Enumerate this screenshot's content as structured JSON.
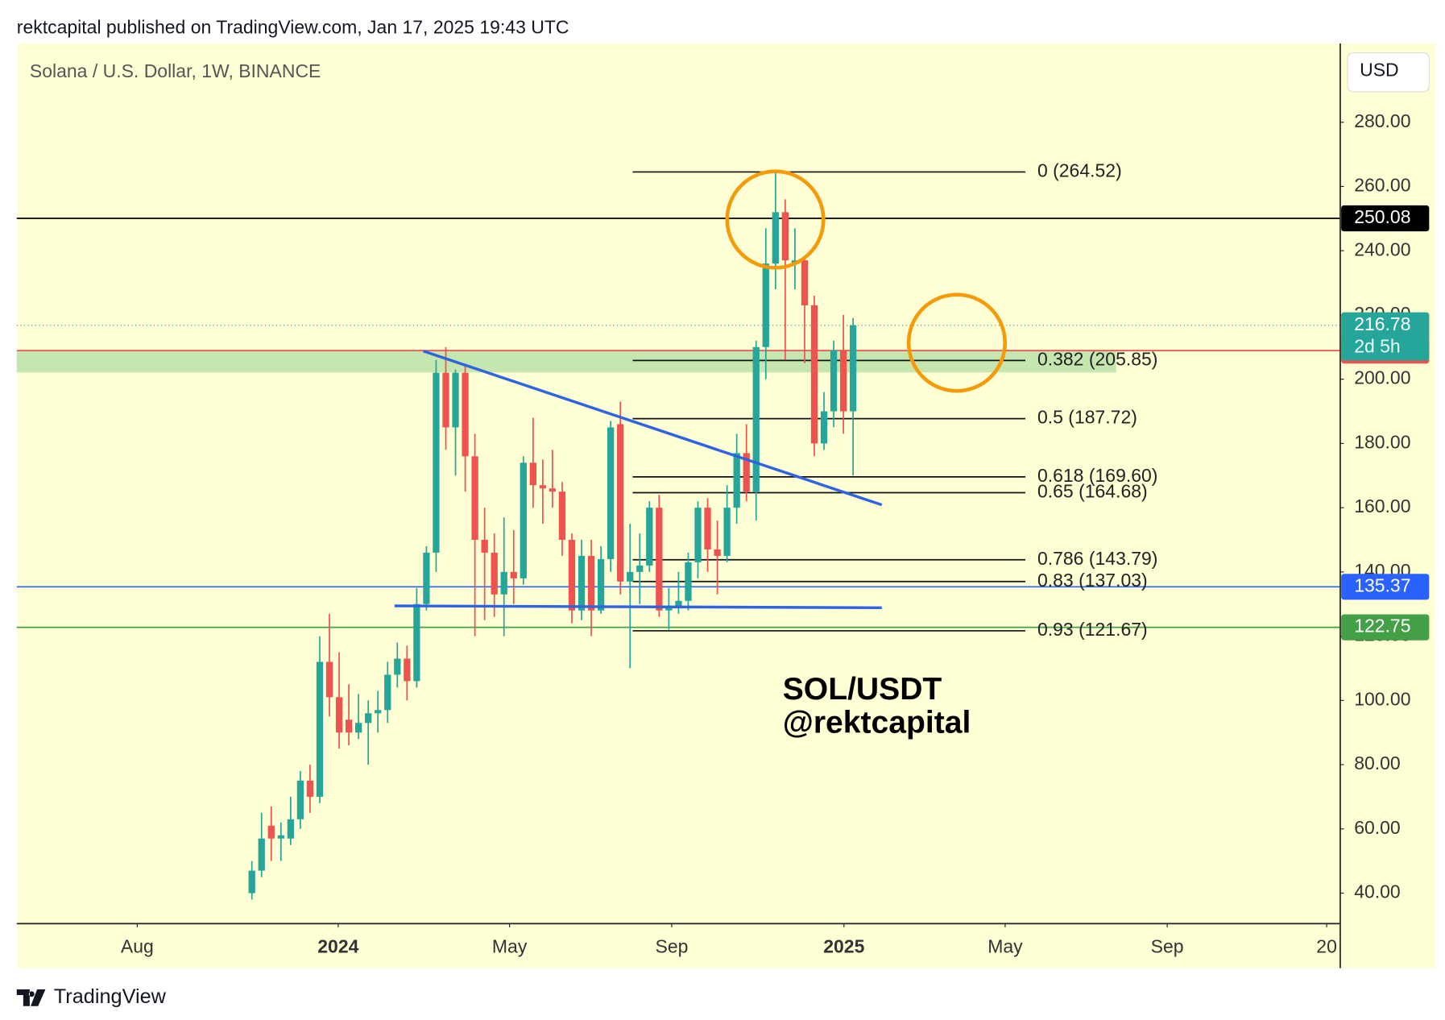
{
  "header": "rektcapital published on TradingView.com, Jan 17, 2025 19:43 UTC",
  "footer": "TradingView",
  "chart_data": {
    "type": "candlestick",
    "title": "Solana / U.S. Dollar, 1W, BINANCE",
    "currency": "USD",
    "annotations": [
      "SOL/USDT",
      "@rektcapital"
    ],
    "up_color": "#26a69a",
    "down_color": "#ef5350",
    "open": [
      40,
      47,
      61,
      57,
      57,
      63,
      75,
      70,
      112,
      101,
      94,
      90,
      93,
      96,
      97,
      108,
      113,
      106,
      130,
      146,
      202,
      185,
      202,
      176,
      150,
      146,
      133,
      140,
      138,
      174,
      167,
      166,
      165,
      150,
      128,
      145,
      128,
      144,
      186,
      137,
      140,
      142,
      160,
      128,
      129,
      131,
      143,
      160,
      147,
      145,
      160,
      177,
      165,
      210,
      236,
      252,
      236,
      237,
      223,
      180,
      190,
      209,
      190
    ],
    "high": [
      50,
      65,
      67,
      62,
      70,
      78,
      80,
      120,
      127,
      115,
      105,
      102,
      100,
      103,
      112,
      118,
      117,
      135,
      148,
      206,
      210,
      203,
      204,
      183,
      160,
      152,
      157,
      153,
      176,
      188,
      175,
      178,
      168,
      152,
      150,
      150,
      148,
      187,
      193,
      155,
      152,
      162,
      164,
      135,
      140,
      146,
      162,
      163,
      156,
      167,
      183,
      186,
      212,
      247,
      264.52,
      256,
      247,
      238,
      226,
      196,
      212,
      220,
      219
    ],
    "low": [
      38,
      45,
      50,
      50,
      55,
      60,
      65,
      68,
      95,
      85,
      86,
      88,
      80,
      90,
      93,
      104,
      100,
      104,
      128,
      140,
      178,
      170,
      165,
      120,
      125,
      126,
      120,
      130,
      136,
      160,
      155,
      160,
      145,
      124,
      125,
      120,
      127,
      140,
      133,
      110,
      130,
      140,
      126,
      122,
      127,
      128,
      138,
      140,
      133,
      143,
      155,
      162,
      156,
      200,
      228,
      206,
      228,
      205,
      176,
      178,
      185,
      183,
      170
    ],
    "close": [
      47,
      57,
      57,
      58,
      63,
      75,
      70,
      112,
      101,
      90,
      90,
      93,
      96,
      97,
      108,
      113,
      106,
      130,
      146,
      202,
      185,
      202,
      176,
      150,
      146,
      133,
      140,
      138,
      174,
      167,
      166,
      165,
      150,
      128,
      145,
      128,
      144,
      185,
      137,
      140,
      142,
      160,
      128,
      129,
      131,
      143,
      160,
      147,
      145,
      160,
      177,
      165,
      210,
      236,
      252,
      237,
      237,
      223,
      180,
      190,
      209,
      190,
      216.78
    ],
    "xlim": [
      -24.26,
      112.2
    ],
    "xticks": [
      {
        "value": -11.84,
        "label": "Aug"
      },
      {
        "value": 8.88,
        "label": "2024"
      },
      {
        "value": 26.55,
        "label": "May"
      },
      {
        "value": 43.27,
        "label": "Sep"
      },
      {
        "value": 61.03,
        "label": "2025"
      },
      {
        "value": 77.65,
        "label": "May"
      },
      {
        "value": 94.36,
        "label": "Sep"
      },
      {
        "value": 110.8,
        "label": "20"
      }
    ],
    "ylim": [
      30.5,
      304.5
    ],
    "yticks": [
      {
        "value": 40,
        "label": "40.00"
      },
      {
        "value": 60,
        "label": "60.00"
      },
      {
        "value": 80,
        "label": "80.00"
      },
      {
        "value": 100,
        "label": "100.00"
      },
      {
        "value": 120,
        "label": "120.00"
      },
      {
        "value": 140,
        "label": "140.00"
      },
      {
        "value": 160,
        "label": "160.00"
      },
      {
        "value": 180,
        "label": "180.00"
      },
      {
        "value": 200,
        "label": "200.00"
      },
      {
        "value": 220,
        "label": "220.00"
      },
      {
        "value": 240,
        "label": "240.00"
      },
      {
        "value": 260,
        "label": "260.00"
      },
      {
        "value": 280,
        "label": "280.00"
      }
    ],
    "fib_levels": [
      {
        "value": 264.52,
        "label": "0 (264.52)"
      },
      {
        "value": 205.85,
        "label": "0.382 (205.85)"
      },
      {
        "value": 187.72,
        "label": "0.5 (187.72)"
      },
      {
        "value": 169.6,
        "label": "0.618 (169.60)"
      },
      {
        "value": 164.68,
        "label": "0.65 (164.68)"
      },
      {
        "value": 143.79,
        "label": "0.786 (143.79)"
      },
      {
        "value": 137.03,
        "label": "0.83 (137.03)"
      },
      {
        "value": 121.67,
        "label": "0.93 (121.67)"
      }
    ],
    "levels": [
      {
        "value": 250.08,
        "color": "#000000"
      },
      {
        "value": 208.91,
        "color": "#ef5350"
      },
      {
        "value": 135.37,
        "color": "#2962ff"
      },
      {
        "value": 122.75,
        "color": "#43a047"
      }
    ],
    "last_price": {
      "value": 216.78,
      "color": "#26a69a",
      "countdown": "2d 5h"
    }
  }
}
